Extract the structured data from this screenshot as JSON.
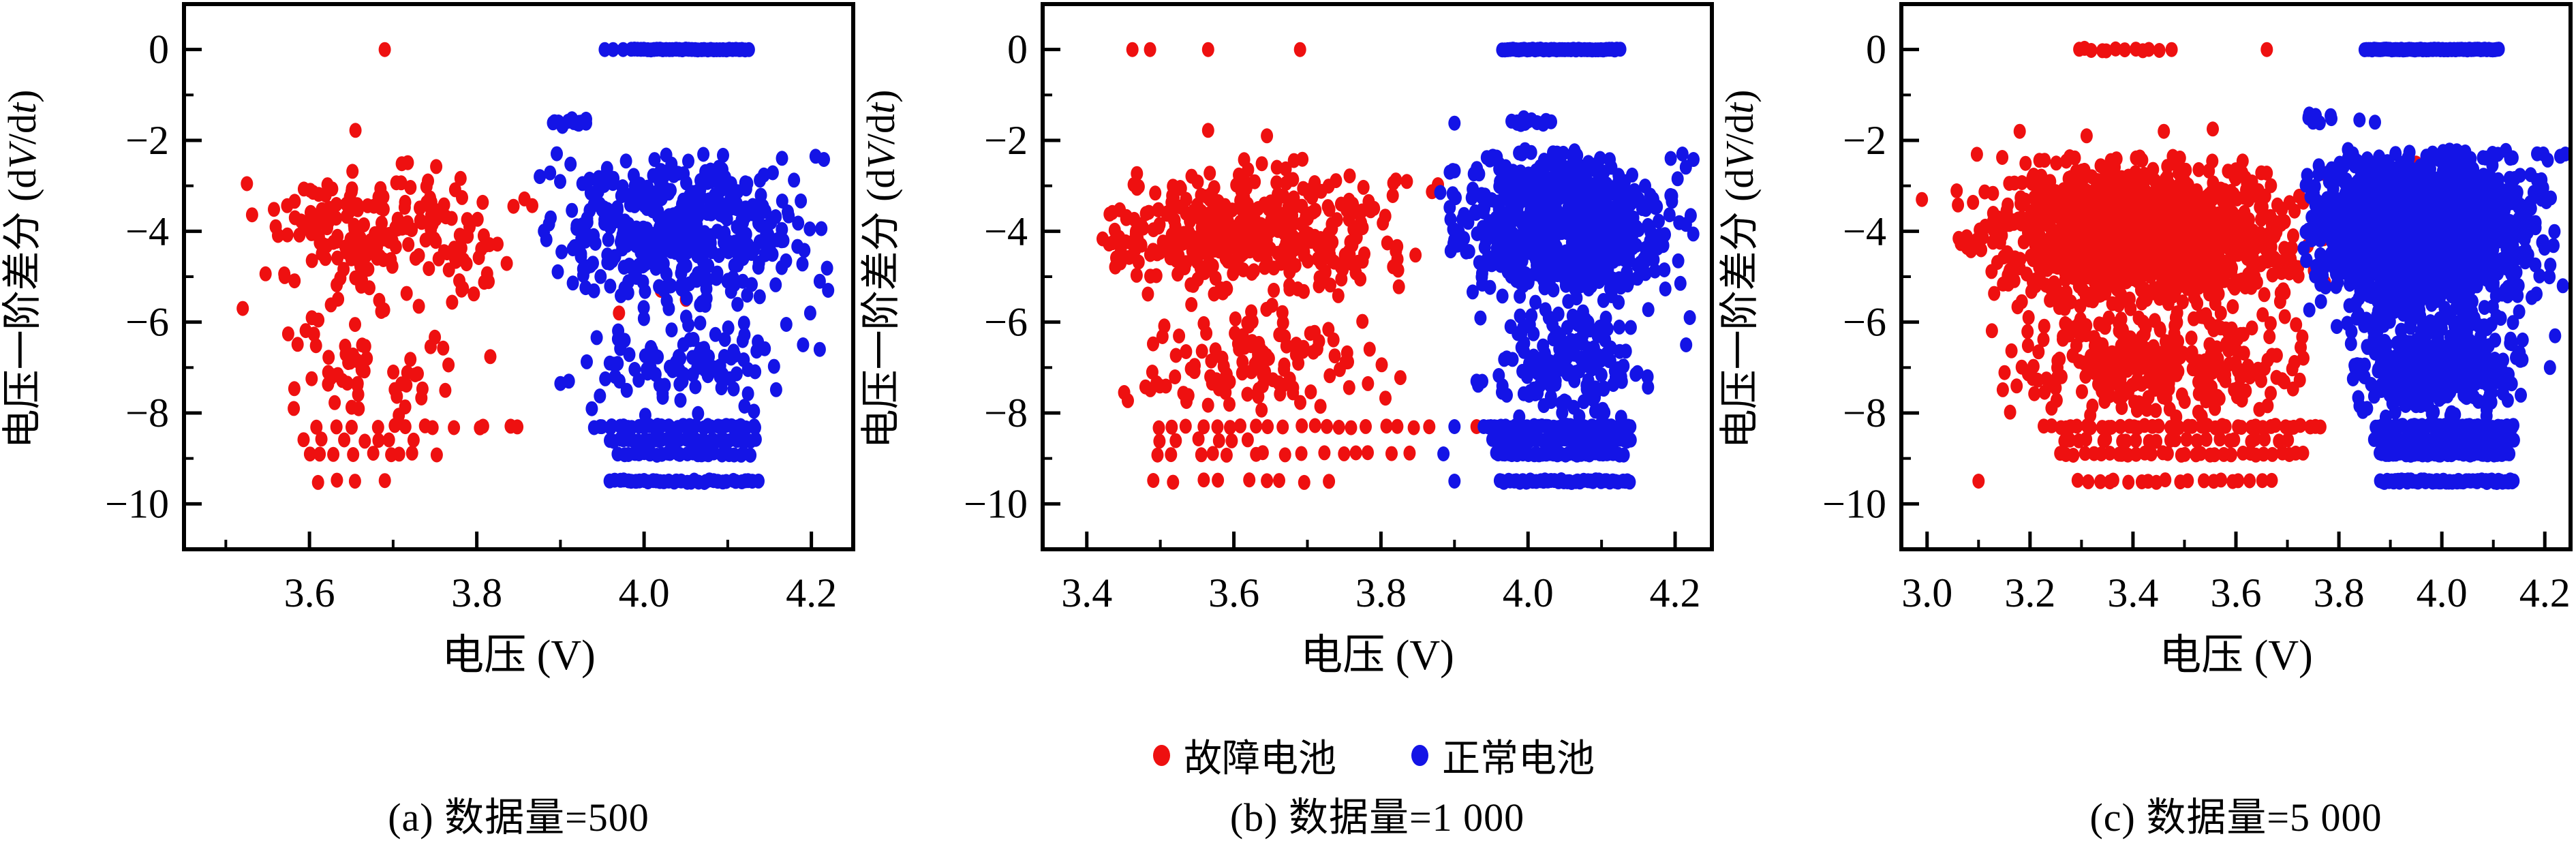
{
  "figure_title": "",
  "colors": {
    "fault": "#ee1010",
    "normal": "#1414e6",
    "axis": "#000000",
    "background": "#ffffff"
  },
  "legend": {
    "items": [
      {
        "label": "故障电池",
        "color": "#ee1010",
        "marker": "dot"
      },
      {
        "label": "正常电池",
        "color": "#1414e6",
        "marker": "dot"
      }
    ]
  },
  "axis_text": {
    "x_title": "电压 (V)",
    "y_title": "电压一阶差分 (dV/dt)",
    "y_title_parts": [
      "电压一阶差分 (d",
      "V",
      "/d",
      "t",
      ")"
    ]
  },
  "chart_data": [
    {
      "id": "a",
      "type": "scatter",
      "caption": "(a) 数据量=500",
      "xlabel": "电压 (V)",
      "ylabel": "电压一阶差分 (dV/dt)",
      "xlim": [
        3.45,
        4.25
      ],
      "ylim": [
        -11,
        1
      ],
      "xticks": [
        3.6,
        3.8,
        4.0,
        4.2
      ],
      "yticks": [
        0,
        -2,
        -4,
        -6,
        -8,
        -10
      ],
      "x_minor_step": 0.1,
      "y_minor_step": 1,
      "grid": false,
      "legend_position": "below-figure",
      "seed": 101,
      "series": [
        {
          "name": "故障电池",
          "color": "#ee1010",
          "clusters": [
            {
              "cx": 3.68,
              "cy": -4.0,
              "sx": 0.085,
              "sy": 0.72,
              "n": 200,
              "xmin": 3.52,
              "xmax": 3.9,
              "ymin": -6.0,
              "ymax": -2.35
            },
            {
              "cx": 3.67,
              "cy": -6.9,
              "sx": 0.075,
              "sy": 0.6,
              "n": 55,
              "xmin": 3.56,
              "xmax": 3.86,
              "ymin": -8.1,
              "ymax": -5.9
            }
          ],
          "bands": [
            {
              "y": -8.3,
              "x1": 3.615,
              "x2": 3.855,
              "n": 13
            },
            {
              "y": -8.6,
              "x1": 3.6,
              "x2": 3.72,
              "n": 7
            },
            {
              "y": -8.9,
              "x1": 3.595,
              "x2": 3.75,
              "n": 9
            },
            {
              "y": -9.5,
              "x1": 3.6,
              "x2": 3.7,
              "n": 4
            }
          ],
          "lines": [],
          "points": [
            [
              3.69,
              0
            ],
            [
              3.655,
              -1.78
            ],
            [
              4.02,
              -2.9
            ],
            [
              4.02,
              -5.3
            ],
            [
              4.05,
              -5.5
            ],
            [
              3.97,
              -5.8
            ]
          ]
        },
        {
          "name": "正常电池",
          "color": "#1414e6",
          "clusters": [
            {
              "cx": 3.905,
              "cy": -1.62,
              "sx": 0.02,
              "sy": 0.05,
              "n": 13,
              "xmin": 3.87,
              "xmax": 3.94,
              "ymin": -1.75,
              "ymax": -1.5
            },
            {
              "cx": 4.04,
              "cy": -3.85,
              "sx": 0.075,
              "sy": 0.8,
              "n": 430,
              "xmin": 3.875,
              "xmax": 4.22,
              "ymin": -6.0,
              "ymax": -2.2
            },
            {
              "cx": 4.05,
              "cy": -6.9,
              "sx": 0.055,
              "sy": 0.6,
              "n": 95,
              "xmin": 3.92,
              "xmax": 4.17,
              "ymin": -8.1,
              "ymax": -5.9
            }
          ],
          "bands": [
            {
              "y": -8.3,
              "x1": 3.94,
              "x2": 4.135,
              "n": 34
            },
            {
              "y": -8.6,
              "x1": 3.96,
              "x2": 4.135,
              "n": 32
            },
            {
              "y": -8.9,
              "x1": 3.97,
              "x2": 4.125,
              "n": 28
            },
            {
              "y": -9.5,
              "x1": 3.96,
              "x2": 4.135,
              "n": 36
            }
          ],
          "lines": [
            {
              "y": 0,
              "x1": 3.985,
              "x2": 4.125,
              "n": 38
            }
          ],
          "points": [
            [
              3.953,
              0
            ],
            [
              3.963,
              0
            ],
            [
              3.975,
              0
            ],
            [
              4.205,
              -2.35
            ],
            [
              4.215,
              -2.42
            ],
            [
              4.21,
              -5.1
            ],
            [
              4.22,
              -5.3
            ],
            [
              4.19,
              -6.5
            ],
            [
              4.21,
              -6.6
            ],
            [
              4.17,
              -6.05
            ],
            [
              3.91,
              -7.3
            ],
            [
              3.9,
              -7.35
            ]
          ]
        }
      ]
    },
    {
      "id": "b",
      "type": "scatter",
      "caption": "(b) 数据量=1 000",
      "xlabel": "电压 (V)",
      "ylabel": "电压一阶差分 (dV/dt)",
      "xlim": [
        3.34,
        4.25
      ],
      "ylim": [
        -11,
        1
      ],
      "xticks": [
        3.4,
        3.6,
        3.8,
        4.0,
        4.2
      ],
      "yticks": [
        0,
        -2,
        -4,
        -6,
        -8,
        -10
      ],
      "x_minor_step": 0.1,
      "y_minor_step": 1,
      "grid": false,
      "legend_position": "below-figure",
      "seed": 202,
      "series": [
        {
          "name": "故障电池",
          "color": "#ee1010",
          "clusters": [
            {
              "cx": 3.62,
              "cy": -4.1,
              "sx": 0.105,
              "sy": 0.75,
              "n": 400,
              "xmin": 3.42,
              "xmax": 3.9,
              "ymin": -6.1,
              "ymax": -2.3
            },
            {
              "cx": 3.63,
              "cy": -6.95,
              "sx": 0.1,
              "sy": 0.6,
              "n": 110,
              "xmin": 3.45,
              "xmax": 3.875,
              "ymin": -8.1,
              "ymax": -5.9
            }
          ],
          "bands": [
            {
              "y": -8.3,
              "x1": 3.5,
              "x2": 3.86,
              "n": 20
            },
            {
              "y": -8.6,
              "x1": 3.5,
              "x2": 3.63,
              "n": 6
            },
            {
              "y": -8.9,
              "x1": 3.5,
              "x2": 3.84,
              "n": 15
            },
            {
              "y": -9.5,
              "x1": 3.5,
              "x2": 3.73,
              "n": 9
            }
          ],
          "lines": [],
          "points": [
            [
              3.462,
              0
            ],
            [
              3.486,
              0
            ],
            [
              3.565,
              0
            ],
            [
              3.69,
              0
            ],
            [
              3.565,
              -1.78
            ],
            [
              3.645,
              -1.9
            ],
            [
              3.93,
              -8.3
            ],
            [
              3.95,
              -4.6
            ]
          ]
        },
        {
          "name": "正常电池",
          "color": "#1414e6",
          "clusters": [
            {
              "cx": 4.0,
              "cy": -1.58,
              "sx": 0.018,
              "sy": 0.05,
              "n": 15,
              "xmin": 3.965,
              "xmax": 4.035,
              "ymin": -1.72,
              "ymax": -1.45
            },
            {
              "cx": 4.045,
              "cy": -3.9,
              "sx": 0.07,
              "sy": 0.8,
              "n": 760,
              "xmin": 3.88,
              "xmax": 4.225,
              "ymin": -6.05,
              "ymax": -2.2
            },
            {
              "cx": 4.05,
              "cy": -6.9,
              "sx": 0.055,
              "sy": 0.62,
              "n": 150,
              "xmin": 3.93,
              "xmax": 4.17,
              "ymin": -8.1,
              "ymax": -5.85
            }
          ],
          "bands": [
            {
              "y": -8.3,
              "x1": 3.94,
              "x2": 4.14,
              "n": 44
            },
            {
              "y": -8.6,
              "x1": 3.95,
              "x2": 4.14,
              "n": 42
            },
            {
              "y": -8.9,
              "x1": 3.955,
              "x2": 4.13,
              "n": 38
            },
            {
              "y": -9.5,
              "x1": 3.96,
              "x2": 4.14,
              "n": 46
            }
          ],
          "lines": [
            {
              "y": 0,
              "x1": 3.965,
              "x2": 4.125,
              "n": 44
            }
          ],
          "points": [
            [
              3.9,
              -8.3
            ],
            [
              3.885,
              -8.9
            ],
            [
              3.9,
              -9.5
            ],
            [
              3.93,
              -7.3
            ],
            [
              4.21,
              -2.3
            ],
            [
              4.225,
              -2.42
            ],
            [
              4.215,
              -6.5
            ],
            [
              4.22,
              -5.9
            ],
            [
              3.9,
              -1.62
            ]
          ]
        }
      ]
    },
    {
      "id": "c",
      "type": "scatter",
      "caption": "(c) 数据量=5 000",
      "xlabel": "电压 (V)",
      "ylabel": "电压一阶差分 (dV/dt)",
      "xlim": [
        2.95,
        4.25
      ],
      "ylim": [
        -11,
        1
      ],
      "xticks": [
        3.0,
        3.2,
        3.4,
        3.6,
        3.8,
        4.0,
        4.2
      ],
      "yticks": [
        0,
        -2,
        -4,
        -6,
        -8,
        -10
      ],
      "x_minor_step": 0.1,
      "y_minor_step": 1,
      "grid": false,
      "legend_position": "below-figure",
      "seed": 303,
      "series": [
        {
          "name": "故障电池",
          "color": "#ee1010",
          "clusters": [
            {
              "cx": 3.41,
              "cy": -4.1,
              "sx": 0.14,
              "sy": 0.78,
              "n": 1400,
              "xmin": 3.05,
              "xmax": 3.78,
              "ymin": -6.2,
              "ymax": -2.3
            },
            {
              "cx": 3.43,
              "cy": -7.0,
              "sx": 0.13,
              "sy": 0.6,
              "n": 300,
              "xmin": 3.12,
              "xmax": 3.77,
              "ymin": -8.1,
              "ymax": -5.9
            }
          ],
          "bands": [
            {
              "y": 0,
              "x1": 3.29,
              "x2": 3.37,
              "n": 6
            },
            {
              "y": 0,
              "x1": 3.385,
              "x2": 3.445,
              "n": 5
            },
            {
              "y": -8.3,
              "x1": 3.23,
              "x2": 3.77,
              "n": 42
            },
            {
              "y": -8.6,
              "x1": 3.26,
              "x2": 3.7,
              "n": 24
            },
            {
              "y": -8.9,
              "x1": 3.26,
              "x2": 3.73,
              "n": 32
            },
            {
              "y": -9.5,
              "x1": 3.29,
              "x2": 3.67,
              "n": 20
            }
          ],
          "lines": [],
          "points": [
            [
              3.475,
              0
            ],
            [
              3.66,
              0
            ],
            [
              3.18,
              -1.8
            ],
            [
              3.31,
              -1.9
            ],
            [
              3.46,
              -1.8
            ],
            [
              3.555,
              -1.75
            ],
            [
              2.99,
              -3.3
            ],
            [
              3.1,
              -9.5
            ],
            [
              3.95,
              -2.5
            ],
            [
              3.99,
              -4.6
            ],
            [
              3.95,
              -7.6
            ],
            [
              3.97,
              -8.3
            ],
            [
              3.955,
              -8.9
            ]
          ]
        },
        {
          "name": "正常电池",
          "color": "#1414e6",
          "clusters": [
            {
              "cx": 3.76,
              "cy": -1.52,
              "sx": 0.02,
              "sy": 0.06,
              "n": 9,
              "xmin": 3.72,
              "xmax": 3.8,
              "ymin": -1.65,
              "ymax": -1.4
            },
            {
              "cx": 3.96,
              "cy": -3.95,
              "sx": 0.1,
              "sy": 0.85,
              "n": 1900,
              "xmin": 3.73,
              "xmax": 4.225,
              "ymin": -6.2,
              "ymax": -2.2
            },
            {
              "cx": 3.99,
              "cy": -7.0,
              "sx": 0.08,
              "sy": 0.62,
              "n": 380,
              "xmin": 3.82,
              "xmax": 4.17,
              "ymin": -8.1,
              "ymax": -5.85
            }
          ],
          "bands": [
            {
              "y": -8.3,
              "x1": 3.87,
              "x2": 4.14,
              "n": 60
            },
            {
              "y": -8.6,
              "x1": 3.87,
              "x2": 4.14,
              "n": 58
            },
            {
              "y": -8.9,
              "x1": 3.88,
              "x2": 4.13,
              "n": 52
            },
            {
              "y": -9.5,
              "x1": 3.88,
              "x2": 4.14,
              "n": 62
            }
          ],
          "lines": [
            {
              "y": 0,
              "x1": 3.85,
              "x2": 4.11,
              "n": 70
            }
          ],
          "points": [
            [
              3.84,
              -1.55
            ],
            [
              3.87,
              -1.6
            ],
            [
              4.23,
              -2.35
            ],
            [
              4.24,
              -2.3
            ],
            [
              4.22,
              -6.3
            ],
            [
              4.21,
              -7.0
            ],
            [
              4.235,
              -5.2
            ]
          ]
        }
      ]
    }
  ]
}
